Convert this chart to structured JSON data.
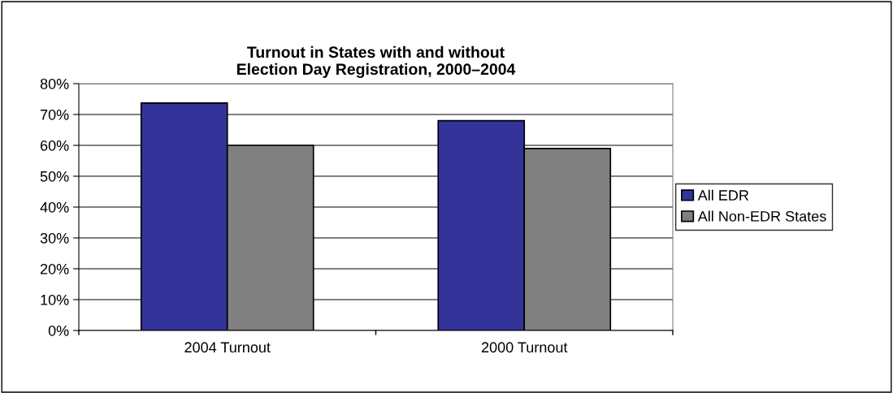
{
  "chart_data": {
    "type": "bar",
    "title": "Turnout in States with and without\nElection Day Registration, 2000–2004",
    "categories": [
      "2004 Turnout",
      "2000 Turnout"
    ],
    "series": [
      {
        "name": "All EDR",
        "color": "#333399",
        "values": [
          73.7,
          68
        ]
      },
      {
        "name": "All Non-EDR States",
        "color": "#808080",
        "values": [
          60,
          59
        ]
      }
    ],
    "ylim": [
      0,
      80
    ],
    "yticks": [
      {
        "value": 0,
        "label": "0%"
      },
      {
        "value": 10,
        "label": "10%"
      },
      {
        "value": 20,
        "label": "20%"
      },
      {
        "value": 30,
        "label": "30%"
      },
      {
        "value": 40,
        "label": "40%"
      },
      {
        "value": 50,
        "label": "50%"
      },
      {
        "value": 60,
        "label": "60%"
      },
      {
        "value": 70,
        "label": "70%"
      },
      {
        "value": 80,
        "label": "80%"
      }
    ],
    "grid": "y",
    "legend": "right"
  }
}
